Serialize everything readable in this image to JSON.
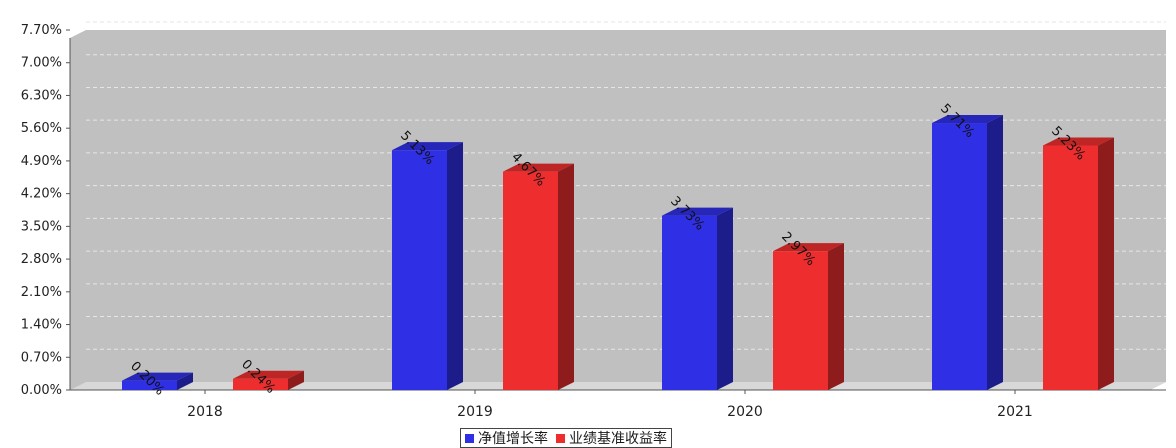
{
  "chart_data": {
    "type": "bar",
    "categories": [
      "2018",
      "2019",
      "2020",
      "2021"
    ],
    "series": [
      {
        "name": "净值增长率",
        "values": [
          0.2,
          5.13,
          3.73,
          5.71
        ],
        "labels": [
          "0.20%",
          "5.13%",
          "3.73%",
          "5.71%"
        ],
        "color": "#2f2fe6"
      },
      {
        "name": "业绩基准收益率",
        "values": [
          0.24,
          4.67,
          2.97,
          5.23
        ],
        "labels": [
          "0.24%",
          "4.67%",
          "2.97%",
          "5.23%"
        ],
        "color": "#ee2e2e"
      }
    ],
    "y_ticks": [
      "0.00%",
      "0.70%",
      "1.40%",
      "2.10%",
      "2.80%",
      "3.50%",
      "4.20%",
      "4.90%",
      "5.60%",
      "6.30%",
      "7.00%",
      "7.70%"
    ],
    "ylim": [
      0,
      7.7
    ],
    "grid": true,
    "legend_position": "bottom-center"
  },
  "colors": {
    "plot_background": "#c0c0c0",
    "grid": "#e6e6e6"
  }
}
